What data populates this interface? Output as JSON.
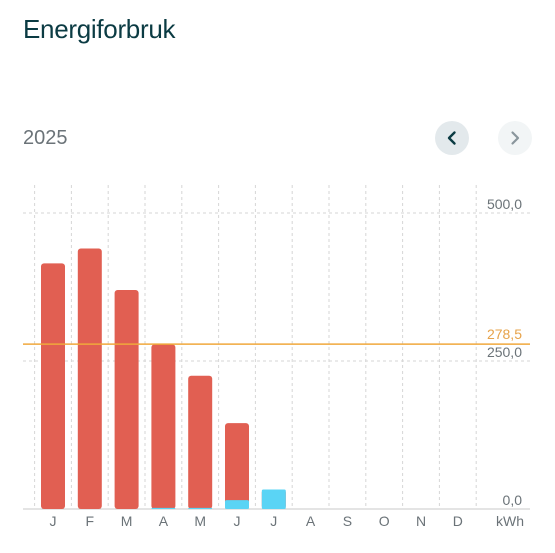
{
  "header": {
    "title": "Energiforbruk"
  },
  "period": {
    "year": "2025"
  },
  "nav": {
    "prev_icon": "chevron-left-icon",
    "next_icon": "chevron-right-icon"
  },
  "colors": {
    "consumption": "#e15f52",
    "production": "#5ad4f5",
    "average": "#f0a83c",
    "grid": "#d6d6d6"
  },
  "chart_data": {
    "type": "bar",
    "title": "Energiforbruk",
    "unit": "kWh",
    "categories": [
      "J",
      "F",
      "M",
      "A",
      "M",
      "J",
      "J",
      "A",
      "S",
      "O",
      "N",
      "D"
    ],
    "series": [
      {
        "values": [
          415,
          440,
          370,
          278,
          225,
          145,
          33,
          null,
          null,
          null,
          null,
          null
        ],
        "color": "#e15f52"
      },
      {
        "values": [
          0,
          0,
          0,
          2,
          2,
          15,
          33,
          null,
          null,
          null,
          null,
          null
        ],
        "color": "#5ad4f5"
      }
    ],
    "y_ticks": [
      "500,0",
      "250,0",
      "0,0"
    ],
    "y_tick_values": [
      500,
      250,
      0
    ],
    "ylim": [
      0,
      500
    ],
    "average": {
      "value": 278.5,
      "label": "278,5"
    },
    "grid": true
  }
}
